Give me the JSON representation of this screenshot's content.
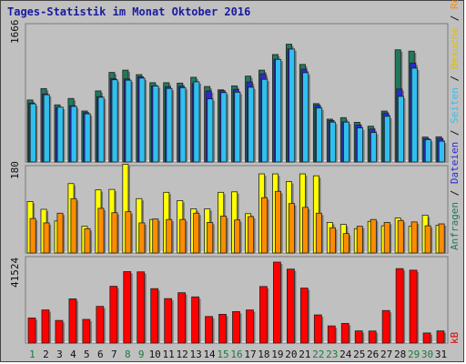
{
  "chart_data": [
    {
      "type": "bar",
      "panel": "top",
      "title": "Tages-Statistik im Monat Oktober 2016",
      "ymax_label": "1666",
      "categories": [
        "1",
        "2",
        "3",
        "4",
        "5",
        "6",
        "7",
        "8",
        "9",
        "10",
        "11",
        "12",
        "13",
        "14",
        "15",
        "16",
        "17",
        "18",
        "19",
        "20",
        "21",
        "22",
        "23",
        "24",
        "25",
        "26",
        "27",
        "28",
        "29",
        "30",
        "31"
      ],
      "series": [
        {
          "name": "Anfragen",
          "color": "#1f7a5c",
          "values": [
            747,
            884,
            688,
            765,
            614,
            856,
            1079,
            1106,
            1052,
            955,
            955,
            950,
            1020,
            909,
            869,
            917,
            1034,
            1106,
            1294,
            1419,
            1175,
            703,
            516,
            534,
            478,
            431,
            613,
            1351,
            1335,
            300,
            303
          ]
        },
        {
          "name": "Dateien",
          "color": "#2a2ad4",
          "values": [
            709,
            819,
            653,
            677,
            594,
            787,
            1004,
            1001,
            1026,
            916,
            905,
            912,
            942,
            856,
            859,
            874,
            965,
            1060,
            1236,
            1361,
            1118,
            683,
            499,
            482,
            444,
            396,
            591,
            879,
            1191,
            281,
            282
          ]
        },
        {
          "name": "Seiten",
          "color": "#30c0f0",
          "values": [
            700,
            810,
            660,
            670,
            580,
            780,
            990,
            985,
            1010,
            915,
            885,
            895,
            965,
            760,
            835,
            840,
            900,
            995,
            1235,
            1360,
            1075,
            650,
            480,
            480,
            410,
            355,
            550,
            790,
            1130,
            270,
            250
          ]
        }
      ],
      "x_label_colors": [
        "#1a7a3a",
        "#0f0f0f",
        "#0f0f0f",
        "#0f0f0f",
        "#0f0f0f",
        "#0f0f0f",
        "#0f0f0f",
        "#1a7a3a",
        "#1a7a3a",
        "#0f0f0f",
        "#0f0f0f",
        "#0f0f0f",
        "#0f0f0f",
        "#0f0f0f",
        "#1a7a3a",
        "#1a7a3a",
        "#0f0f0f",
        "#0f0f0f",
        "#0f0f0f",
        "#0f0f0f",
        "#0f0f0f",
        "#1a7a3a",
        "#1a7a3a",
        "#0f0f0f",
        "#0f0f0f",
        "#0f0f0f",
        "#0f0f0f",
        "#0f0f0f",
        "#1a7a3a",
        "#1a7a3a",
        "#0f0f0f"
      ]
    },
    {
      "type": "bar",
      "panel": "middle",
      "ymax_label": "180",
      "series": [
        {
          "name": "Besuche",
          "color": "#ffff00",
          "values": [
            106,
            90,
            66,
            143,
            55,
            130,
            131,
            183,
            112,
            69,
            125,
            108,
            91,
            91,
            125,
            126,
            81,
            163,
            163,
            147,
            163,
            159,
            63,
            59,
            50,
            65,
            56,
            72,
            55,
            78,
            57
          ]
        },
        {
          "name": "Rechner",
          "color": "#ff8c00",
          "values": [
            71,
            62,
            82,
            112,
            50,
            92,
            83,
            85,
            62,
            70,
            69,
            69,
            82,
            63,
            76,
            68,
            75,
            114,
            127,
            102,
            94,
            82,
            52,
            40,
            55,
            69,
            63,
            67,
            64,
            56,
            60
          ]
        }
      ]
    },
    {
      "type": "bar",
      "panel": "bottom",
      "ymax_label": "41524",
      "series": [
        {
          "name": "kB",
          "color": "#ff0000",
          "values": [
            12071,
            15926,
            10871,
            21236,
            11371,
            17627,
            27277,
            34325,
            34219,
            26146,
            21366,
            24185,
            22185,
            12779,
            13813,
            15128,
            15913,
            27179,
            38893,
            35537,
            26416,
            13530,
            8245,
            9452,
            5857,
            5797,
            15625,
            35757,
            35022,
            4855,
            5847
          ]
        }
      ]
    }
  ],
  "right_legend": {
    "upper_parts": [
      {
        "text": "Anfragen",
        "color": "#1f7a5c"
      },
      {
        "text": " / ",
        "color": "#0f0f0f"
      },
      {
        "text": "Dateien",
        "color": "#2a2ad4"
      },
      {
        "text": " / ",
        "color": "#0f0f0f"
      },
      {
        "text": "Seiten",
        "color": "#30c0f0"
      },
      {
        "text": " / ",
        "color": "#0f0f0f"
      },
      {
        "text": "Besuche",
        "color": "#e0c000"
      },
      {
        "text": " / ",
        "color": "#0f0f0f"
      },
      {
        "text": "Rechner",
        "color": "#ff8c00"
      }
    ],
    "lower": {
      "text": "kB",
      "color": "#e00000"
    }
  }
}
